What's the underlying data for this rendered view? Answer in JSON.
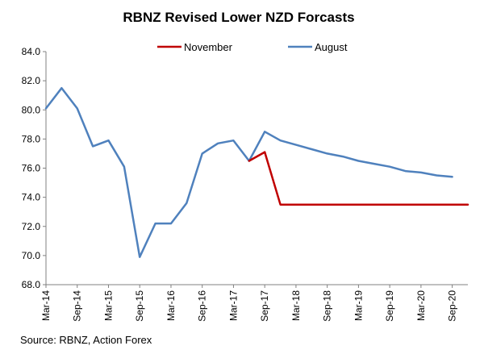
{
  "chart_data": {
    "type": "line",
    "title": "RBNZ Revised Lower NZD Forcasts",
    "source": "Source: RBNZ, Action Forex",
    "ylim": [
      68.0,
      84.0
    ],
    "y_ticks": [
      "84.0",
      "82.0",
      "80.0",
      "78.0",
      "76.0",
      "74.0",
      "72.0",
      "70.0",
      "68.0"
    ],
    "x_tick_labels": [
      "Mar-14",
      "Sep-14",
      "Mar-15",
      "Sep-15",
      "Mar-16",
      "Sep-16",
      "Mar-17",
      "Sep-17",
      "Mar-18",
      "Sep-18",
      "Mar-19",
      "Sep-19",
      "Mar-20",
      "Sep-20"
    ],
    "grid": false,
    "legend_position": "top",
    "series": [
      {
        "name": "November",
        "color": "#c00000",
        "points": [
          [
            "Jun-17",
            76.5
          ],
          [
            "Sep-17",
            77.1
          ],
          [
            "Dec-17",
            73.5
          ],
          [
            "Mar-18",
            73.5
          ],
          [
            "Jun-18",
            73.5
          ],
          [
            "Sep-18",
            73.5
          ],
          [
            "Dec-18",
            73.5
          ],
          [
            "Mar-19",
            73.5
          ],
          [
            "Jun-19",
            73.5
          ],
          [
            "Sep-19",
            73.5
          ],
          [
            "Dec-19",
            73.5
          ],
          [
            "Mar-20",
            73.5
          ],
          [
            "Jun-20",
            73.5
          ],
          [
            "Sep-20",
            73.5
          ],
          [
            "Dec-20",
            73.5
          ]
        ]
      },
      {
        "name": "August",
        "color": "#4f81bd",
        "points": [
          [
            "Mar-14",
            80.1
          ],
          [
            "Jun-14",
            81.5
          ],
          [
            "Sep-14",
            80.1
          ],
          [
            "Dec-14",
            77.5
          ],
          [
            "Mar-15",
            77.9
          ],
          [
            "Jun-15",
            76.1
          ],
          [
            "Sep-15",
            69.9
          ],
          [
            "Dec-15",
            72.2
          ],
          [
            "Mar-16",
            72.2
          ],
          [
            "Jun-16",
            73.6
          ],
          [
            "Sep-16",
            77.0
          ],
          [
            "Dec-16",
            77.7
          ],
          [
            "Mar-17",
            77.9
          ],
          [
            "Jun-17",
            76.5
          ],
          [
            "Sep-17",
            78.5
          ],
          [
            "Dec-17",
            77.9
          ],
          [
            "Mar-18",
            77.6
          ],
          [
            "Jun-18",
            77.3
          ],
          [
            "Sep-18",
            77.0
          ],
          [
            "Dec-18",
            76.8
          ],
          [
            "Mar-19",
            76.5
          ],
          [
            "Jun-19",
            76.3
          ],
          [
            "Sep-19",
            76.1
          ],
          [
            "Dec-19",
            75.8
          ],
          [
            "Mar-20",
            75.7
          ],
          [
            "Jun-20",
            75.5
          ],
          [
            "Sep-20",
            75.4
          ]
        ]
      }
    ]
  }
}
